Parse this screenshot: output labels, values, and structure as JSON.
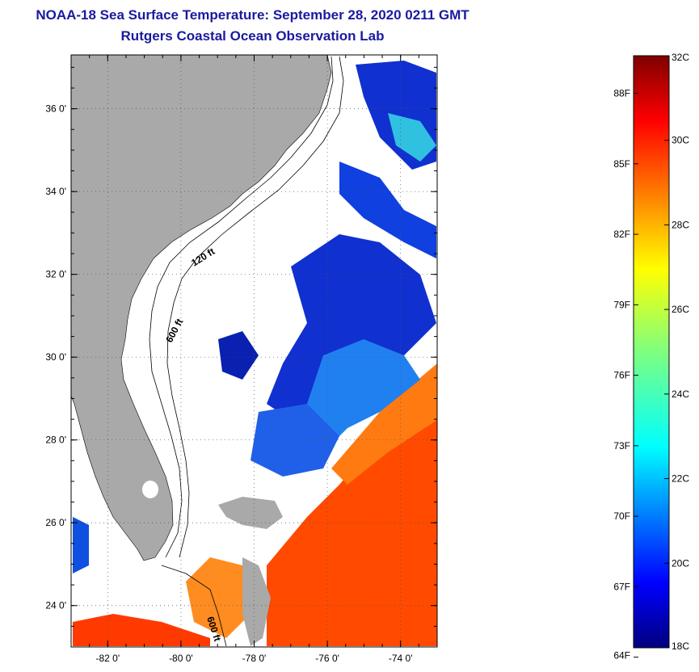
{
  "title": {
    "line1": "NOAA-18 Sea Surface Temperature:  September 28, 2020 0211 GMT",
    "line2": "Rutgers Coastal Ocean Observation Lab"
  },
  "map": {
    "lat_labels": [
      "36 0'",
      "34 0'",
      "32 0'",
      "30 0'",
      "28 0'",
      "26 0'",
      "24 0'"
    ],
    "lon_labels": [
      "-82 0'",
      "-80 0'",
      "-78 0'",
      "-76 0'",
      "-74 0'"
    ],
    "lat_range": [
      23,
      37.3
    ],
    "lon_range": [
      -83,
      -73
    ],
    "contour_labels": [
      "120 ft",
      "600 ft",
      "600 ft"
    ],
    "colors": {
      "land": "#a9a9a9",
      "cloud": "#ffffff",
      "contour": "#000000"
    }
  },
  "colorbar": {
    "label_min_c": "18C",
    "label_max_c": "32C",
    "celsius_labels": [
      "32C",
      "30C",
      "28C",
      "26C",
      "24C",
      "22C",
      "20C",
      "18C"
    ],
    "fahrenheit_labels": [
      "88F",
      "85F",
      "82F",
      "79F",
      "76F",
      "73F",
      "70F",
      "67F",
      "64F"
    ],
    "range_c": [
      18,
      32
    ],
    "colormap": "jet"
  }
}
